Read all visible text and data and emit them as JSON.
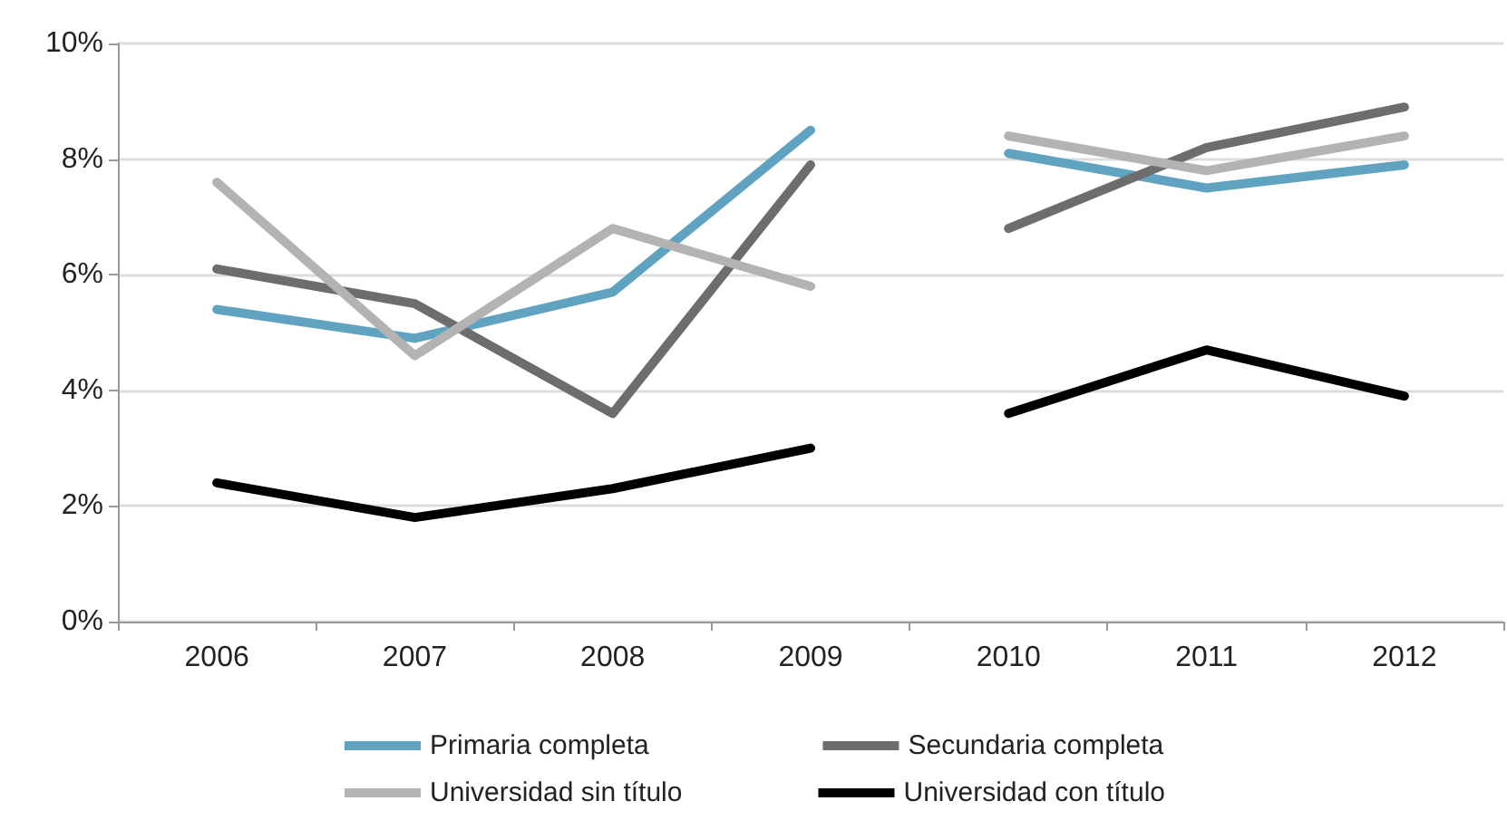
{
  "chart_data": {
    "type": "line",
    "categories": [
      "2006",
      "2007",
      "2008",
      "2009",
      "2010",
      "2011",
      "2012"
    ],
    "series": [
      {
        "name": "Primaria completa",
        "color": "#5fa3c0",
        "values": [
          5.4,
          4.9,
          5.7,
          8.5,
          null,
          null,
          null
        ]
      },
      {
        "color": "#5fa3c0",
        "values": [
          null,
          null,
          null,
          null,
          8.1,
          7.5,
          7.9
        ]
      },
      {
        "name": "Secundaria completa",
        "color": "#6d6d6d",
        "values": [
          6.1,
          5.5,
          3.6,
          7.9,
          null,
          null,
          null
        ]
      },
      {
        "color": "#6d6d6d",
        "values": [
          null,
          null,
          null,
          null,
          6.8,
          8.2,
          8.9
        ]
      },
      {
        "name": "Universidad sin título",
        "color": "#b3b3b3",
        "values": [
          7.6,
          4.6,
          6.8,
          5.8,
          null,
          null,
          null
        ]
      },
      {
        "color": "#b3b3b3",
        "values": [
          null,
          null,
          null,
          null,
          8.4,
          7.8,
          8.4
        ]
      },
      {
        "name": "Universidad con título",
        "color": "#000000",
        "values": [
          2.4,
          1.8,
          2.3,
          3.0,
          null,
          null,
          null
        ]
      },
      {
        "color": "#000000",
        "values": [
          null,
          null,
          null,
          null,
          3.6,
          4.7,
          3.9
        ]
      }
    ],
    "ylim": [
      0,
      10
    ],
    "yticks": [
      {
        "value": 0,
        "label": "0%"
      },
      {
        "value": 2,
        "label": "2%"
      },
      {
        "value": 4,
        "label": "4%"
      },
      {
        "value": 6,
        "label": "6%"
      },
      {
        "value": 8,
        "label": "8%"
      },
      {
        "value": 10,
        "label": "10%"
      }
    ],
    "grid": "y",
    "legend": "bottom",
    "marker": "none",
    "line_style": "solid"
  }
}
